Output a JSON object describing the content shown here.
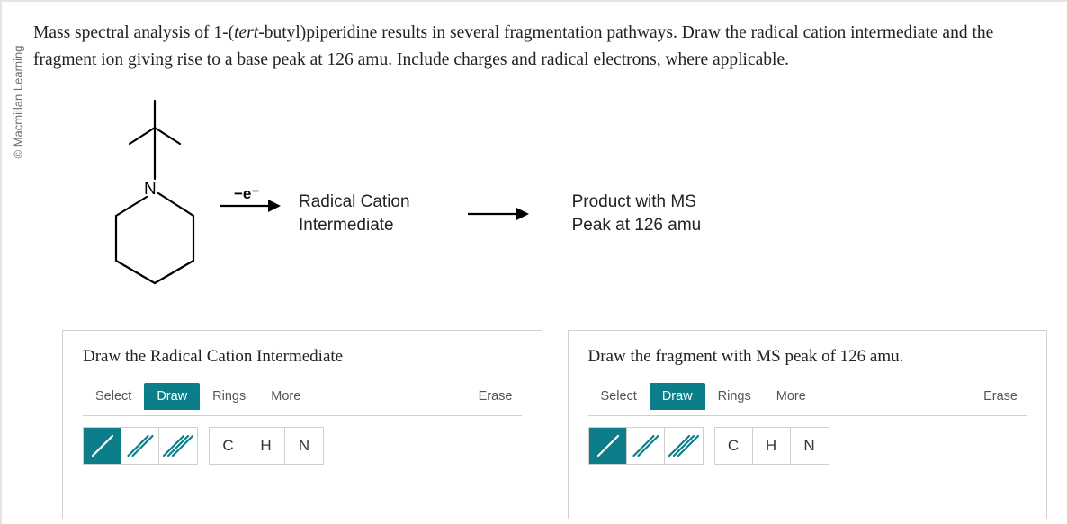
{
  "side_label": "© Macmillan Learning",
  "question_html": "Mass spectral analysis of 1-(<em>tert</em>-butyl)piperidine results in several fragmentation pathways. Draw the radical cation intermediate and the fragment ion giving rise to a base peak at 126 amu. Include charges and radical electrons, where applicable.",
  "reaction": {
    "electron_loss_label": "−e⁻",
    "stage1": "Radical Cation\nIntermediate",
    "stage2": "Product with MS\nPeak at 126 amu"
  },
  "molecule": {
    "atom_label": "N",
    "stroke": "#000000",
    "stroke_width": 2.2,
    "font_size": 18
  },
  "arrow": {
    "stroke": "#000000",
    "width": 68,
    "head_w": 14,
    "head_h": 7
  },
  "left_panel": {
    "title": "Draw the Radical Cation Intermediate",
    "tabs": [
      "Select",
      "Draw",
      "Rings",
      "More"
    ],
    "active_tab": 1,
    "erase": "Erase",
    "bonds": [
      "single",
      "double",
      "triple"
    ],
    "active_bond": 0,
    "elements": [
      "C",
      "H",
      "N"
    ]
  },
  "right_panel": {
    "title": "Draw the fragment with MS peak of 126 amu.",
    "tabs": [
      "Select",
      "Draw",
      "Rings",
      "More"
    ],
    "active_tab": 1,
    "erase": "Erase",
    "bonds": [
      "single",
      "double",
      "triple"
    ],
    "active_bond": 0,
    "elements": [
      "C",
      "H",
      "N"
    ]
  },
  "colors": {
    "accent": "#0b7e8a",
    "border": "#cfcfcf",
    "text": "#222222",
    "muted": "#555555"
  }
}
